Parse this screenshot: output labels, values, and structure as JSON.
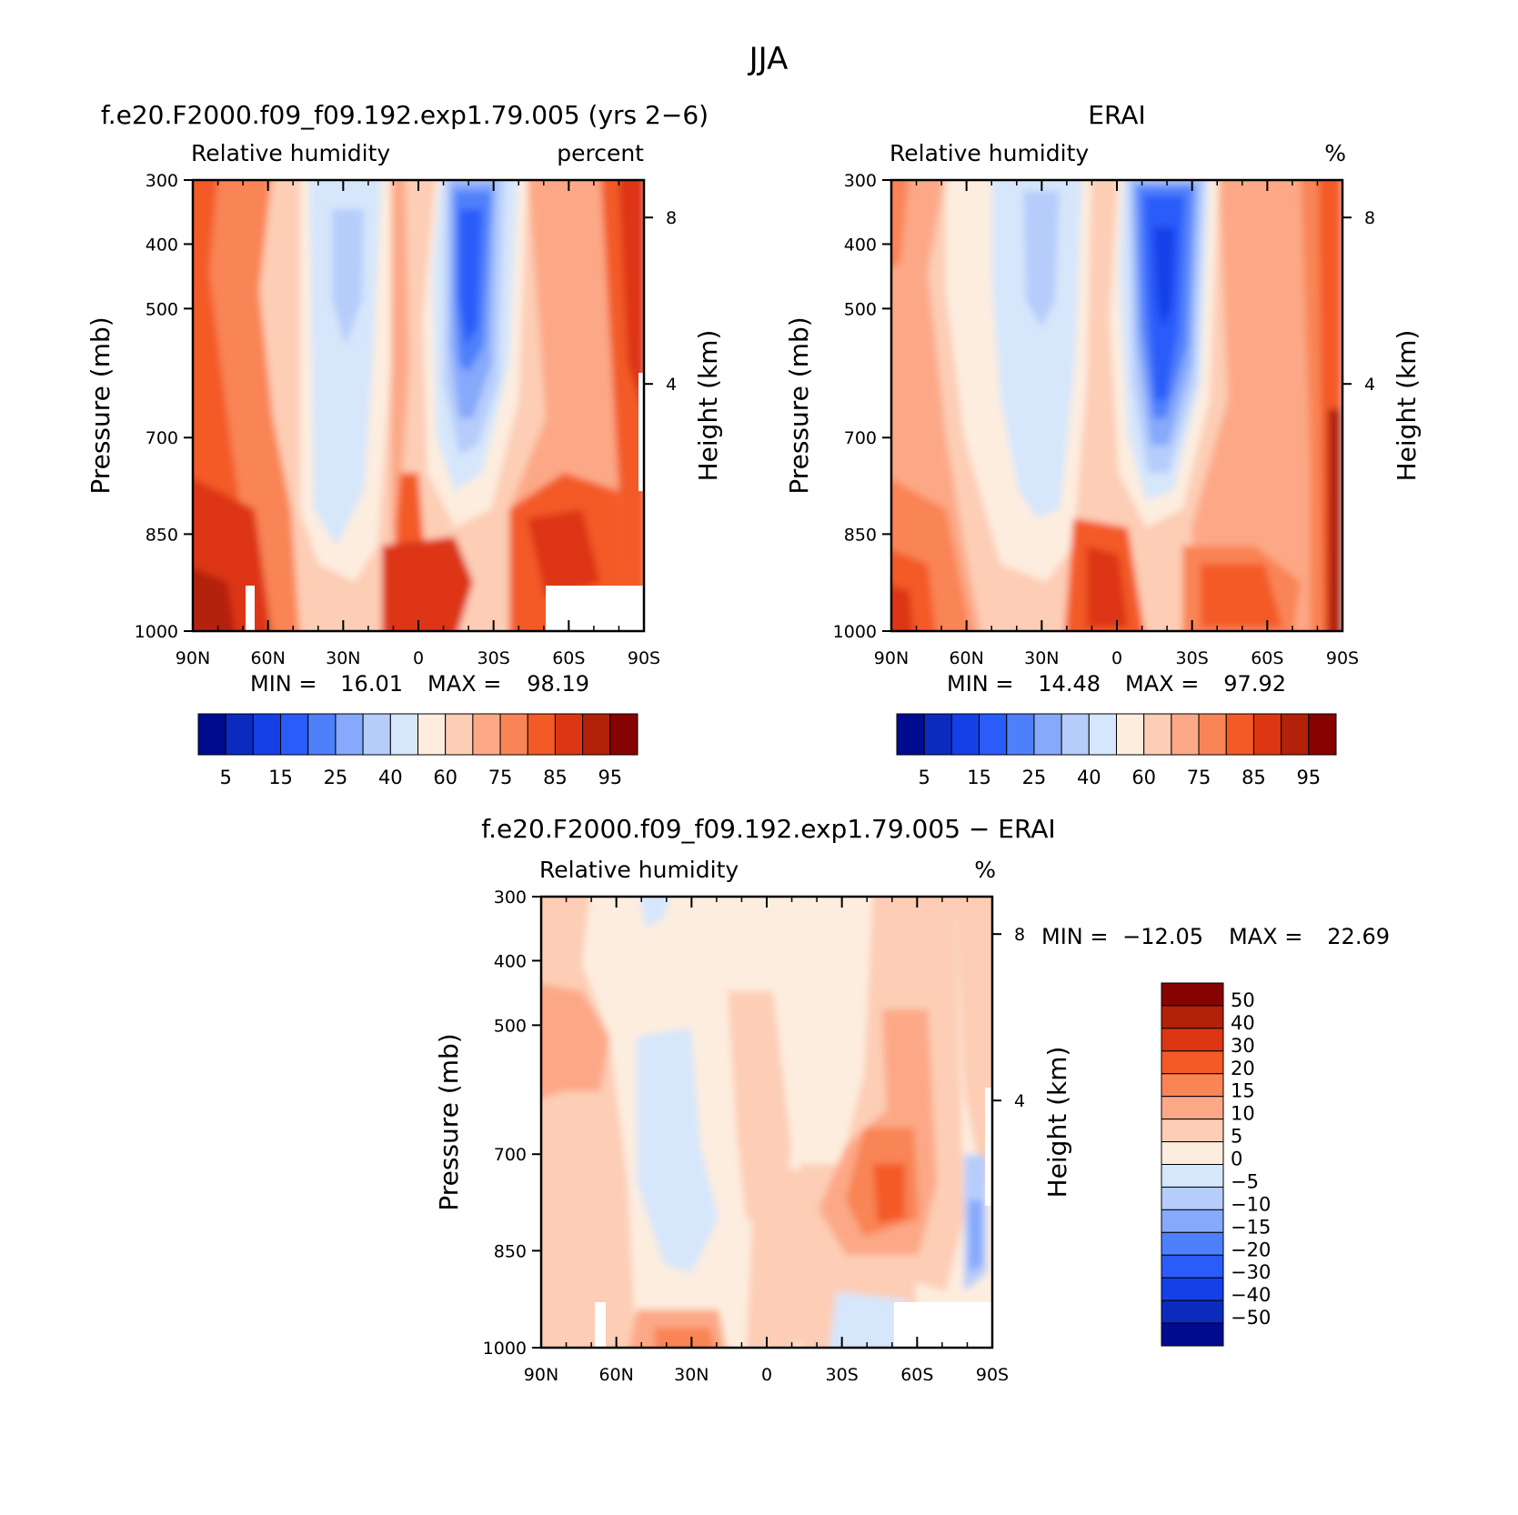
{
  "figure": {
    "title": "JJA"
  },
  "chart_data": [
    {
      "id": "model",
      "type": "heatmap",
      "title": "f.e20.F2000.f09_f09.192.exp1.79.005 (yrs 2−6)",
      "subtitle_left": "Relative humidity",
      "subtitle_right": "percent",
      "ylabel": "Pressure (mb)",
      "ylabel_right": "Height (km)",
      "x_ticks": [
        "90N",
        "60N",
        "30N",
        "0",
        "30S",
        "60S",
        "90S"
      ],
      "y_ticks": [
        "300",
        "400",
        "500",
        "700",
        "850",
        "1000"
      ],
      "y_right_ticks": [
        "8",
        "4"
      ],
      "stats": {
        "min_label": "MIN =",
        "min": "16.01",
        "max_label": "MAX =",
        "max": "98.19"
      },
      "colorbar_labels": [
        "5",
        "15",
        "25",
        "40",
        "60",
        "75",
        "85",
        "95"
      ]
    },
    {
      "id": "obs",
      "type": "heatmap",
      "title": "ERAI",
      "subtitle_left": "Relative humidity",
      "subtitle_right": "%",
      "ylabel": "Pressure (mb)",
      "ylabel_right": "Height (km)",
      "x_ticks": [
        "90N",
        "60N",
        "30N",
        "0",
        "30S",
        "60S",
        "90S"
      ],
      "y_ticks": [
        "300",
        "400",
        "500",
        "700",
        "850",
        "1000"
      ],
      "y_right_ticks": [
        "8",
        "4"
      ],
      "stats": {
        "min_label": "MIN =",
        "min": "14.48",
        "max_label": "MAX =",
        "max": "97.92"
      },
      "colorbar_labels": [
        "5",
        "15",
        "25",
        "40",
        "60",
        "75",
        "85",
        "95"
      ]
    },
    {
      "id": "diff",
      "type": "heatmap",
      "title": "f.e20.F2000.f09_f09.192.exp1.79.005 − ERAI",
      "subtitle_left": "Relative humidity",
      "subtitle_right": "%",
      "ylabel": "Pressure (mb)",
      "ylabel_right": "Height (km)",
      "x_ticks": [
        "90N",
        "60N",
        "30N",
        "0",
        "30S",
        "60S",
        "90S"
      ],
      "y_ticks": [
        "300",
        "400",
        "500",
        "700",
        "850",
        "1000"
      ],
      "y_right_ticks": [
        "8",
        "4"
      ],
      "stats": {
        "min_label": "MIN =",
        "min": "−12.05",
        "max_label": "MAX =",
        "max": "22.69"
      },
      "colorbar_labels": [
        "50",
        "40",
        "30",
        "20",
        "15",
        "10",
        "5",
        "0",
        "−5",
        "−10",
        "−15",
        "−20",
        "−30",
        "−40",
        "−50"
      ]
    }
  ],
  "colors": {
    "abs_scale": [
      "#000c8f",
      "#0a2bbe",
      "#1540e8",
      "#2a5cfa",
      "#4f80fb",
      "#86a9fb",
      "#b6cdfb",
      "#d6e6fb",
      "#fdeddf",
      "#fdcdb5",
      "#fca886",
      "#f98455",
      "#f35a26",
      "#dd3612",
      "#b22109",
      "#870202"
    ],
    "diff_scale": [
      "#870202",
      "#b22109",
      "#dd3612",
      "#f35a26",
      "#f98455",
      "#fca886",
      "#fdcdb5",
      "#fdeddf",
      "#d6e6fb",
      "#b6cdfb",
      "#86a9fb",
      "#4f80fb",
      "#2a5cfa",
      "#1540e8",
      "#0a2bbe",
      "#000c8f"
    ]
  }
}
